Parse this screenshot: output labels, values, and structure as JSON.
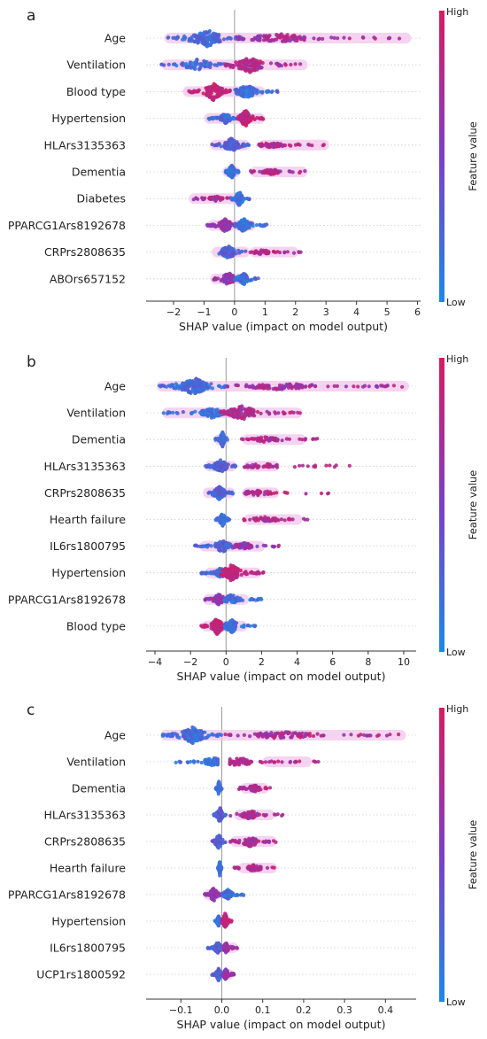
{
  "colors": {
    "low": "#1e88e5",
    "mid": "#7b3fc4",
    "high": "#d81b60",
    "halo": "#f3c4ec",
    "zero_line": "#999999",
    "grid": "#cccccc",
    "axis": "#333333"
  },
  "chart_data": [
    {
      "type": "scatter",
      "subtype": "shap-beeswarm",
      "panel_label": "a",
      "xlabel": "SHAP value (impact on model output)",
      "xlim": [
        -2.9,
        6.1
      ],
      "xticks": [
        -2,
        -1,
        0,
        1,
        2,
        3,
        4,
        5,
        6
      ],
      "tick_labels": [
        "−2",
        "−1",
        "0",
        "1",
        "2",
        "3",
        "4",
        "5",
        "6"
      ],
      "colorbar": {
        "high": "High",
        "low": "Low",
        "title": "Feature value"
      },
      "features": [
        {
          "name": "Age",
          "left": {
            "min": -2.2,
            "max": 0.3,
            "center": -0.9,
            "spread": 10,
            "n": 150,
            "lo": 0.05,
            "hi": 0.35
          },
          "right": {
            "min": 0.1,
            "max": 5.7,
            "center": 1.5,
            "spread": 5,
            "n": 110,
            "lo": 0.5,
            "hi": 0.95
          },
          "halo": [
            [
              -2.3,
              5.8
            ]
          ]
        },
        {
          "name": "Ventilation",
          "left": {
            "min": -2.4,
            "max": -0.1,
            "center": -1.2,
            "spread": 7,
            "n": 70,
            "lo": 0.05,
            "hi": 0.35
          },
          "right": {
            "min": -0.3,
            "max": 2.2,
            "center": 0.5,
            "spread": 9,
            "n": 110,
            "lo": 0.6,
            "hi": 0.95
          },
          "halo": [
            [
              -2.4,
              2.4
            ]
          ]
        },
        {
          "name": "Blood type",
          "left": {
            "min": -1.5,
            "max": -0.1,
            "center": -0.7,
            "spread": 10,
            "n": 130,
            "lo": 0.75,
            "hi": 1.0
          },
          "right": {
            "min": 0.0,
            "max": 1.5,
            "center": 0.4,
            "spread": 8,
            "n": 100,
            "lo": 0.0,
            "hi": 0.35
          },
          "halo": [
            [
              -1.7,
              1.0
            ]
          ]
        },
        {
          "name": "Hypertension",
          "left": {
            "min": -0.9,
            "max": 0.1,
            "center": -0.3,
            "spread": 6,
            "n": 70,
            "lo": 0.05,
            "hi": 0.35
          },
          "right": {
            "min": 0.1,
            "max": 0.95,
            "center": 0.35,
            "spread": 10,
            "n": 120,
            "lo": 0.75,
            "hi": 1.0
          },
          "halo": [
            [
              -1.0,
              1.0
            ]
          ]
        },
        {
          "name": "HLArs3135363",
          "left": {
            "min": -0.75,
            "max": 0.5,
            "center": -0.1,
            "spread": 8,
            "n": 100,
            "lo": 0.15,
            "hi": 0.45
          },
          "right": {
            "min": 0.8,
            "max": 3.3,
            "center": 1.2,
            "spread": 3,
            "n": 60,
            "lo": 0.6,
            "hi": 0.95
          },
          "halo": [
            [
              -0.8,
              0.5
            ],
            [
              0.8,
              3.1
            ]
          ]
        },
        {
          "name": "Dementia",
          "left": {
            "min": -0.35,
            "max": 0.15,
            "center": -0.1,
            "spread": 9,
            "n": 70,
            "lo": 0.05,
            "hi": 0.3
          },
          "right": {
            "min": 0.5,
            "max": 2.4,
            "center": 1.2,
            "spread": 3,
            "n": 60,
            "lo": 0.6,
            "hi": 0.95
          },
          "halo": [
            [
              -0.4,
              0.2
            ],
            [
              0.5,
              2.4
            ]
          ]
        },
        {
          "name": "Diabetes",
          "left": {
            "min": -1.4,
            "max": -0.1,
            "center": -0.6,
            "spread": 3,
            "n": 50,
            "lo": 0.6,
            "hi": 0.95
          },
          "right": {
            "min": -0.1,
            "max": 0.5,
            "center": 0.15,
            "spread": 9,
            "n": 90,
            "lo": 0.0,
            "hi": 0.3
          },
          "halo": [
            [
              -1.5,
              0.3
            ]
          ]
        },
        {
          "name": "PPARCG1Ars8192678",
          "left": {
            "min": -0.9,
            "max": 0.1,
            "center": -0.3,
            "spread": 8,
            "n": 90,
            "lo": 0.45,
            "hi": 0.8
          },
          "right": {
            "min": 0.0,
            "max": 1.1,
            "center": 0.3,
            "spread": 8,
            "n": 90,
            "lo": 0.0,
            "hi": 0.35
          },
          "halo": [
            [
              -0.9,
              0.7
            ]
          ]
        },
        {
          "name": "CRPrs2808635",
          "left": {
            "min": -0.75,
            "max": 0.4,
            "center": -0.2,
            "spread": 8,
            "n": 90,
            "lo": 0.1,
            "hi": 0.45
          },
          "right": {
            "min": 0.5,
            "max": 2.2,
            "center": 0.9,
            "spread": 3,
            "n": 50,
            "lo": 0.6,
            "hi": 0.95
          },
          "halo": [
            [
              -0.75,
              0.5
            ],
            [
              0.5,
              2.1
            ]
          ]
        },
        {
          "name": "ABOrs657152",
          "left": {
            "min": -0.7,
            "max": 0.2,
            "center": -0.2,
            "spread": 8,
            "n": 90,
            "lo": 0.45,
            "hi": 0.8
          },
          "right": {
            "min": 0.0,
            "max": 0.8,
            "center": 0.3,
            "spread": 7,
            "n": 80,
            "lo": 0.0,
            "hi": 0.35
          },
          "halo": [
            [
              -0.8,
              0.4
            ]
          ]
        }
      ]
    },
    {
      "type": "scatter",
      "subtype": "shap-beeswarm",
      "panel_label": "b",
      "xlabel": "SHAP value (impact on model output)",
      "xlim": [
        -4.5,
        10.7
      ],
      "xticks": [
        -4,
        -2,
        0,
        2,
        4,
        6,
        8,
        10
      ],
      "tick_labels": [
        "−4",
        "−2",
        "0",
        "2",
        "4",
        "6",
        "8",
        "10"
      ],
      "colorbar": {
        "high": "High",
        "low": "Low",
        "title": "Feature value"
      },
      "features": [
        {
          "name": "Age",
          "left": {
            "min": -3.8,
            "max": 0.0,
            "center": -1.8,
            "spread": 10,
            "n": 150,
            "lo": 0.05,
            "hi": 0.35
          },
          "right": {
            "min": 0.0,
            "max": 10.2,
            "center": 3.0,
            "spread": 4,
            "n": 110,
            "lo": 0.55,
            "hi": 0.95
          },
          "halo": [
            [
              -3.9,
              10.3
            ]
          ]
        },
        {
          "name": "Ventilation",
          "left": {
            "min": -3.6,
            "max": -0.2,
            "center": -0.8,
            "spread": 6,
            "n": 80,
            "lo": 0.0,
            "hi": 0.3
          },
          "right": {
            "min": -0.3,
            "max": 4.2,
            "center": 0.9,
            "spread": 8,
            "n": 110,
            "lo": 0.6,
            "hi": 0.95
          },
          "halo": [
            [
              -3.6,
              4.3
            ]
          ]
        },
        {
          "name": "Dementia",
          "left": {
            "min": -0.6,
            "max": 0.1,
            "center": -0.2,
            "spread": 9,
            "n": 70,
            "lo": 0.05,
            "hi": 0.3
          },
          "right": {
            "min": 0.8,
            "max": 5.2,
            "center": 2.2,
            "spread": 3,
            "n": 60,
            "lo": 0.6,
            "hi": 0.95
          },
          "halo": [
            [
              -0.7,
              0.2
            ],
            [
              0.9,
              4.5
            ]
          ]
        },
        {
          "name": "HLArs3135363",
          "left": {
            "min": -1.2,
            "max": 0.6,
            "center": -0.3,
            "spread": 8,
            "n": 100,
            "lo": 0.15,
            "hi": 0.45
          },
          "right": {
            "min": 1.0,
            "max": 7.0,
            "center": 2.0,
            "spread": 3,
            "n": 50,
            "lo": 0.6,
            "hi": 0.95
          },
          "halo": [
            [
              -1.2,
              0.6
            ],
            [
              1.0,
              3.0
            ]
          ]
        },
        {
          "name": "CRPrs2808635",
          "left": {
            "min": -1.3,
            "max": 0.4,
            "center": -0.4,
            "spread": 8,
            "n": 100,
            "lo": 0.1,
            "hi": 0.45
          },
          "right": {
            "min": 0.8,
            "max": 5.8,
            "center": 1.8,
            "spread": 3,
            "n": 50,
            "lo": 0.6,
            "hi": 0.95
          },
          "halo": [
            [
              -1.3,
              0.5
            ],
            [
              0.9,
              3.0
            ]
          ]
        },
        {
          "name": "Hearth failure",
          "left": {
            "min": -0.6,
            "max": 0.2,
            "center": -0.2,
            "spread": 8,
            "n": 70,
            "lo": 0.05,
            "hi": 0.3
          },
          "right": {
            "min": 1.0,
            "max": 5.0,
            "center": 2.2,
            "spread": 3,
            "n": 60,
            "lo": 0.6,
            "hi": 0.95
          },
          "halo": [
            [
              -0.6,
              0.2
            ],
            [
              1.0,
              4.3
            ]
          ]
        },
        {
          "name": "IL6rs1800795",
          "left": {
            "min": -1.8,
            "max": 0.4,
            "center": -0.2,
            "spread": 7,
            "n": 90,
            "lo": 0.1,
            "hi": 0.45
          },
          "right": {
            "min": 0.4,
            "max": 3.2,
            "center": 1.0,
            "spread": 4,
            "n": 60,
            "lo": 0.45,
            "hi": 0.85
          },
          "halo": [
            [
              -1.5,
              2.2
            ]
          ]
        },
        {
          "name": "Hypertension",
          "left": {
            "min": -1.4,
            "max": 0.0,
            "center": -0.3,
            "spread": 6,
            "n": 70,
            "lo": 0.05,
            "hi": 0.35
          },
          "right": {
            "min": -0.3,
            "max": 2.2,
            "center": 0.3,
            "spread": 10,
            "n": 120,
            "lo": 0.75,
            "hi": 1.0
          },
          "halo": [
            [
              -1.2,
              2.0
            ]
          ]
        },
        {
          "name": "PPARCG1Ars8192678",
          "left": {
            "min": -1.2,
            "max": 0.2,
            "center": -0.4,
            "spread": 7,
            "n": 90,
            "lo": 0.45,
            "hi": 0.8
          },
          "right": {
            "min": -0.1,
            "max": 2.0,
            "center": 0.3,
            "spread": 6,
            "n": 80,
            "lo": 0.0,
            "hi": 0.35
          },
          "halo": [
            [
              -1.3,
              1.3
            ]
          ]
        },
        {
          "name": "Blood type",
          "left": {
            "min": -1.4,
            "max": 0.0,
            "center": -0.5,
            "spread": 10,
            "n": 110,
            "lo": 0.75,
            "hi": 1.0
          },
          "right": {
            "min": -0.1,
            "max": 1.7,
            "center": 0.3,
            "spread": 8,
            "n": 90,
            "lo": 0.0,
            "hi": 0.35
          },
          "halo": [
            [
              -1.4,
              1.2
            ]
          ]
        }
      ]
    },
    {
      "type": "scatter",
      "subtype": "shap-beeswarm",
      "panel_label": "c",
      "xlabel": "SHAP value (impact on model output)",
      "xlim": [
        -0.185,
        0.475
      ],
      "xticks": [
        -0.1,
        0.0,
        0.1,
        0.2,
        0.3,
        0.4
      ],
      "tick_labels": [
        "−0.1",
        "0.0",
        "0.1",
        "0.2",
        "0.3",
        "0.4"
      ],
      "colorbar": {
        "high": "High",
        "low": "Low",
        "title": "Feature value"
      },
      "features": [
        {
          "name": "Age",
          "left": {
            "min": -0.145,
            "max": 0.0,
            "center": -0.07,
            "spread": 10,
            "n": 150,
            "lo": 0.05,
            "hi": 0.35
          },
          "right": {
            "min": 0.0,
            "max": 0.45,
            "center": 0.15,
            "spread": 4,
            "n": 110,
            "lo": 0.55,
            "hi": 0.95
          },
          "halo": [
            [
              -0.15,
              0.45
            ]
          ]
        },
        {
          "name": "Ventilation",
          "left": {
            "min": -0.14,
            "max": -0.01,
            "center": -0.02,
            "spread": 5,
            "n": 70,
            "lo": 0.0,
            "hi": 0.3
          },
          "right": {
            "min": 0.02,
            "max": 0.24,
            "center": 0.04,
            "spread": 5,
            "n": 70,
            "lo": 0.6,
            "hi": 0.95
          },
          "halo": [
            [
              0.03,
              0.055
            ],
            [
              0.1,
              0.22
            ]
          ]
        },
        {
          "name": "Dementia",
          "left": {
            "min": -0.015,
            "max": 0.0,
            "center": -0.007,
            "spread": 9,
            "n": 60,
            "lo": 0.05,
            "hi": 0.3
          },
          "right": {
            "min": 0.04,
            "max": 0.12,
            "center": 0.08,
            "spread": 4,
            "n": 60,
            "lo": 0.6,
            "hi": 0.95
          },
          "halo": [
            [
              0.045,
              0.115
            ]
          ]
        },
        {
          "name": "HLArs3135363",
          "left": {
            "min": -0.02,
            "max": 0.01,
            "center": -0.005,
            "spread": 9,
            "n": 70,
            "lo": 0.15,
            "hi": 0.45
          },
          "right": {
            "min": 0.02,
            "max": 0.15,
            "center": 0.07,
            "spread": 5,
            "n": 60,
            "lo": 0.6,
            "hi": 0.95
          },
          "halo": [
            [
              0.03,
              0.13
            ]
          ]
        },
        {
          "name": "CRPrs2808635",
          "left": {
            "min": -0.025,
            "max": 0.01,
            "center": -0.008,
            "spread": 9,
            "n": 70,
            "lo": 0.1,
            "hi": 0.45
          },
          "right": {
            "min": 0.02,
            "max": 0.135,
            "center": 0.07,
            "spread": 6,
            "n": 70,
            "lo": 0.6,
            "hi": 0.95
          },
          "halo": [
            [
              0.02,
              0.135
            ]
          ]
        },
        {
          "name": "Hearth failure",
          "left": {
            "min": -0.01,
            "max": 0.0,
            "center": -0.005,
            "spread": 9,
            "n": 60,
            "lo": 0.05,
            "hi": 0.3
          },
          "right": {
            "min": 0.03,
            "max": 0.135,
            "center": 0.08,
            "spread": 4,
            "n": 60,
            "lo": 0.6,
            "hi": 0.95
          },
          "halo": [
            [
              0.04,
              0.135
            ]
          ]
        },
        {
          "name": "PPARCG1Ars8192678",
          "left": {
            "min": -0.045,
            "max": 0.0,
            "center": -0.02,
            "spread": 8,
            "n": 70,
            "lo": 0.45,
            "hi": 0.8
          },
          "right": {
            "min": 0.0,
            "max": 0.055,
            "center": 0.015,
            "spread": 6,
            "n": 70,
            "lo": 0.0,
            "hi": 0.35
          },
          "halo": [
            [
              -0.045,
              0.0
            ]
          ]
        },
        {
          "name": "Hypertension",
          "left": {
            "min": -0.02,
            "max": 0.0,
            "center": -0.008,
            "spread": 6,
            "n": 60,
            "lo": 0.05,
            "hi": 0.35
          },
          "right": {
            "min": 0.0,
            "max": 0.025,
            "center": 0.008,
            "spread": 10,
            "n": 90,
            "lo": 0.75,
            "hi": 1.0
          },
          "halo": [
            [
              -0.01,
              0.025
            ]
          ]
        },
        {
          "name": "IL6rs1800795",
          "left": {
            "min": -0.035,
            "max": 0.0,
            "center": -0.01,
            "spread": 8,
            "n": 70,
            "lo": 0.1,
            "hi": 0.45
          },
          "right": {
            "min": 0.0,
            "max": 0.04,
            "center": 0.01,
            "spread": 6,
            "n": 60,
            "lo": 0.45,
            "hi": 0.85
          },
          "halo": [
            [
              0.01,
              0.04
            ]
          ]
        },
        {
          "name": "UCP1rs1800592",
          "left": {
            "min": -0.025,
            "max": 0.0,
            "center": -0.008,
            "spread": 8,
            "n": 70,
            "lo": 0.1,
            "hi": 0.45
          },
          "right": {
            "min": 0.0,
            "max": 0.03,
            "center": 0.01,
            "spread": 7,
            "n": 70,
            "lo": 0.4,
            "hi": 0.8
          },
          "halo": [
            [
              0.0,
              0.03
            ]
          ]
        }
      ]
    }
  ]
}
